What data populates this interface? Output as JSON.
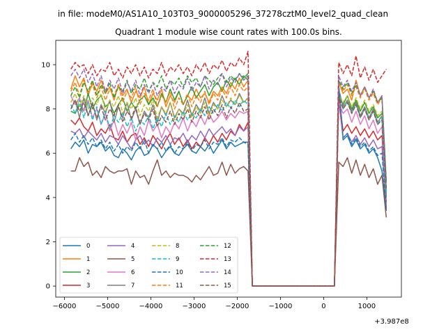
{
  "suptitle": "in file: modeM0/AS1A10_103T03_9000005296_37278cztM0_level2_quad_clean",
  "chart_data": {
    "type": "line",
    "title": "Quadrant 1 module wise count rates with 100.0s bins.",
    "xlabel": "",
    "ylabel": "",
    "x_offset_label": "+3.987e8",
    "xlim": [
      -6200,
      1800
    ],
    "ylim": [
      -0.5,
      11.1
    ],
    "grid": false,
    "legend_position": "lower-left",
    "legend_columns": 4,
    "xticks": [
      -6000,
      -5000,
      -4000,
      -3000,
      -2000,
      -1000,
      0,
      1000
    ],
    "xtick_labels": [
      "−6000",
      "−5000",
      "−4000",
      "−3000",
      "−2000",
      "−1000",
      "0",
      "1000"
    ],
    "yticks": [
      0,
      2,
      4,
      6,
      8,
      10
    ],
    "ytick_labels": [
      "0",
      "2",
      "4",
      "6",
      "8",
      "10"
    ],
    "segment1": {
      "x_start": -5850,
      "x_end": -1750,
      "step": 100
    },
    "gap": {
      "x_start": -1650,
      "x_end": 250,
      "value": 0
    },
    "segment2": {
      "x_start": 350,
      "x_end": 1450,
      "step": 100
    },
    "series": [
      {
        "name": "0",
        "color": "#1f77b4",
        "dash": "solid",
        "values": [
          6.2,
          6.5,
          6.3,
          6.6,
          6.0,
          6.4,
          6.3,
          6.5,
          6.1,
          6.3,
          5.9,
          5.8,
          6.2,
          6.0,
          5.7,
          6.1,
          6.3,
          5.9,
          6.0,
          6.4,
          6.2,
          5.8,
          6.1,
          6.3,
          6.0,
          5.9,
          6.2,
          6.4,
          6.1,
          6.0,
          6.3,
          6.1,
          6.4,
          6.0,
          6.3,
          6.6,
          6.2,
          6.5,
          6.3,
          6.4,
          6.5,
          6.5
        ],
        "tail": [
          9.0,
          6.6,
          6.8,
          6.3,
          6.6,
          6.2,
          6.4,
          6.0,
          6.2,
          5.8,
          5.2,
          3.4
        ]
      },
      {
        "name": "1",
        "color": "#ff7f0e",
        "dash": "solid",
        "values": [
          8.9,
          9.5,
          9.0,
          9.4,
          8.6,
          9.2,
          8.8,
          9.3,
          8.7,
          9.0,
          8.4,
          9.1,
          8.6,
          8.9,
          8.3,
          8.8,
          8.5,
          9.0,
          8.2,
          8.7,
          8.4,
          8.9,
          8.1,
          8.6,
          8.3,
          8.8,
          8.2,
          8.6,
          8.4,
          8.9,
          8.5,
          8.7,
          8.3,
          8.8,
          8.6,
          9.0,
          8.7,
          9.2,
          8.9,
          9.4,
          9.0,
          9.3
        ],
        "tail": [
          9.2,
          8.7,
          8.9,
          8.4,
          9.3,
          8.6,
          9.0,
          8.5,
          8.8,
          8.3,
          8.6,
          4.4
        ]
      },
      {
        "name": "2",
        "color": "#2ca02c",
        "dash": "solid",
        "values": [
          7.9,
          7.8,
          8.2,
          7.9,
          8.7,
          8.0,
          8.4,
          8.6,
          8.1,
          8.3,
          7.8,
          8.2,
          8.5,
          7.9,
          8.3,
          8.0,
          8.4,
          8.6,
          8.2,
          8.5,
          8.1,
          8.7,
          8.3,
          8.9,
          8.4,
          8.8,
          8.2,
          8.6,
          9.0,
          8.5,
          8.8,
          9.1,
          8.6,
          9.0,
          9.2,
          8.8,
          9.3,
          9.0,
          9.4,
          9.1,
          9.5,
          9.3
        ],
        "tail": [
          8.5,
          8.2,
          8.6,
          8.0,
          8.4,
          7.9,
          8.3,
          7.8,
          8.1,
          7.6,
          7.8,
          4.1
        ]
      },
      {
        "name": "3",
        "color": "#d62728",
        "dash": "solid",
        "values": [
          7.5,
          7.3,
          7.6,
          7.2,
          7.0,
          7.4,
          6.8,
          7.1,
          6.9,
          7.3,
          6.7,
          6.6,
          7.0,
          6.5,
          6.8,
          6.9,
          6.4,
          6.7,
          6.3,
          6.8,
          6.5,
          6.2,
          6.6,
          6.9,
          6.4,
          6.7,
          6.3,
          6.6,
          6.2,
          6.5,
          6.3,
          6.7,
          6.4,
          6.8,
          6.5,
          6.9,
          6.6,
          7.0,
          6.8,
          7.3,
          7.0,
          7.4
        ],
        "tail": [
          8.6,
          7.0,
          7.3,
          6.9,
          7.2,
          6.8,
          7.1,
          6.7,
          7.0,
          6.6,
          6.8,
          3.8
        ]
      },
      {
        "name": "4",
        "color": "#9467bd",
        "dash": "solid",
        "values": [
          7.0,
          6.9,
          7.1,
          6.7,
          7.0,
          6.8,
          6.6,
          6.9,
          6.5,
          6.8,
          6.7,
          6.4,
          6.8,
          6.5,
          6.2,
          6.6,
          6.8,
          6.4,
          6.6,
          6.3,
          6.7,
          6.5,
          6.8,
          6.4,
          6.7,
          6.6,
          6.9,
          6.5,
          6.8,
          6.6,
          7.0,
          6.7,
          7.1,
          6.8,
          7.0,
          7.2,
          6.9,
          7.1,
          6.8,
          7.2,
          7.0,
          7.2
        ],
        "tail": [
          8.4,
          6.7,
          6.9,
          6.5,
          6.8,
          6.4,
          6.7,
          6.3,
          6.6,
          6.2,
          6.3,
          3.6
        ]
      },
      {
        "name": "5",
        "color": "#8c564b",
        "dash": "solid",
        "values": [
          5.2,
          5.2,
          5.8,
          5.4,
          5.6,
          5.0,
          5.2,
          4.9,
          5.4,
          5.2,
          5.1,
          5.2,
          5.2,
          5.3,
          4.6,
          5.2,
          4.9,
          5.0,
          4.6,
          5.2,
          5.7,
          5.0,
          5.2,
          4.9,
          5.1,
          5.0,
          5.0,
          4.9,
          4.7,
          5.0,
          4.8,
          5.1,
          5.4,
          5.0,
          5.1,
          5.6,
          5.0,
          5.5,
          5.1,
          5.3,
          5.4,
          5.2
        ],
        "tail": [
          5.6,
          5.4,
          5.8,
          5.1,
          5.7,
          5.0,
          5.5,
          4.9,
          5.3,
          4.6,
          5.0,
          3.1
        ]
      },
      {
        "name": "6",
        "color": "#e377c2",
        "dash": "solid",
        "values": [
          8.6,
          8.2,
          8.5,
          7.9,
          8.4,
          7.6,
          8.0,
          7.3,
          7.8,
          7.0,
          7.5,
          6.8,
          7.3,
          6.9,
          7.4,
          6.6,
          7.2,
          6.8,
          7.5,
          7.0,
          7.3,
          6.7,
          7.2,
          6.9,
          7.4,
          7.1,
          7.6,
          7.0,
          7.5,
          7.2,
          7.7,
          7.3,
          7.8,
          7.4,
          7.6,
          7.9,
          7.5,
          7.8,
          7.6,
          7.9,
          7.8,
          7.9
        ],
        "tail": [
          8.3,
          7.8,
          8.0,
          7.4,
          7.9,
          7.3,
          7.7,
          7.1,
          7.5,
          6.9,
          7.2,
          3.9
        ]
      },
      {
        "name": "7",
        "color": "#7f7f7f",
        "dash": "solid",
        "values": [
          8.0,
          8.4,
          7.6,
          8.5,
          7.7,
          8.3,
          7.5,
          8.2,
          7.8,
          8.4,
          7.4,
          8.1,
          7.6,
          8.3,
          7.5,
          8.0,
          7.3,
          7.9,
          7.6,
          8.2,
          7.4,
          8.1,
          7.7,
          8.3,
          7.6,
          8.0,
          7.8,
          8.4,
          7.7,
          8.2,
          7.9,
          8.5,
          7.8,
          8.3,
          8.0,
          8.6,
          8.1,
          8.4,
          8.2,
          8.7,
          8.3,
          8.5
        ],
        "tail": [
          8.9,
          8.1,
          8.4,
          7.9,
          8.3,
          7.7,
          8.1,
          7.6,
          8.0,
          7.4,
          7.7,
          4.0
        ]
      },
      {
        "name": "8",
        "color": "#bcbd22",
        "dash": "dash",
        "values": [
          8.3,
          8.7,
          8.1,
          8.6,
          8.0,
          8.5,
          8.2,
          8.7,
          7.9,
          8.4,
          8.1,
          8.6,
          7.8,
          8.3,
          8.0,
          8.5,
          7.7,
          8.2,
          7.9,
          8.4,
          7.6,
          8.1,
          7.8,
          8.3,
          7.5,
          8.0,
          7.7,
          8.2,
          7.6,
          8.1,
          7.8,
          8.3,
          7.7,
          8.2,
          8.0,
          8.4,
          8.1,
          8.5,
          8.2,
          8.6,
          8.3,
          8.5
        ],
        "tail": [
          8.7,
          8.3,
          8.6,
          8.1,
          8.5,
          8.0,
          8.4,
          7.9,
          8.2,
          7.7,
          7.9,
          4.3
        ]
      },
      {
        "name": "9",
        "color": "#17becf",
        "dash": "dash",
        "values": [
          8.2,
          7.8,
          8.4,
          7.6,
          8.3,
          7.5,
          8.1,
          7.3,
          7.9,
          7.1,
          7.7,
          7.4,
          7.8,
          7.2,
          7.6,
          7.0,
          7.5,
          7.3,
          7.7,
          7.1,
          7.6,
          7.2,
          7.8,
          7.3,
          7.7,
          7.4,
          7.9,
          7.5,
          7.8,
          7.6,
          8.0,
          7.7,
          8.1,
          7.8,
          8.2,
          7.9,
          8.3,
          8.0,
          8.4,
          8.1,
          8.4,
          8.2
        ],
        "tail": [
          8.8,
          8.0,
          8.3,
          7.8,
          8.2,
          7.6,
          8.0,
          7.5,
          7.9,
          7.3,
          7.6,
          4.2
        ]
      },
      {
        "name": "10",
        "color": "#1f77b4",
        "dash": "dash",
        "values": [
          6.6,
          6.9,
          6.5,
          6.8,
          6.4,
          6.7,
          6.3,
          6.6,
          6.2,
          6.5,
          6.1,
          6.4,
          6.0,
          6.3,
          6.1,
          6.5,
          6.2,
          6.6,
          6.0,
          6.4,
          6.2,
          6.5,
          6.1,
          6.4,
          6.0,
          6.3,
          6.2,
          6.5,
          6.1,
          6.4,
          6.3,
          6.6,
          6.2,
          6.5,
          6.4,
          6.7,
          6.3,
          6.6,
          6.5,
          6.7,
          6.5,
          6.4
        ],
        "tail": [
          9.1,
          6.7,
          6.9,
          6.4,
          6.7,
          6.3,
          6.5,
          6.1,
          6.3,
          5.9,
          6.0,
          3.5
        ]
      },
      {
        "name": "11",
        "color": "#ff7f0e",
        "dash": "dash",
        "values": [
          8.8,
          9.2,
          8.6,
          9.3,
          8.7,
          9.1,
          8.5,
          9.0,
          8.4,
          8.9,
          8.6,
          9.1,
          8.3,
          8.8,
          8.5,
          9.0,
          8.2,
          8.7,
          8.4,
          8.9,
          8.1,
          8.6,
          8.3,
          8.8,
          8.0,
          8.5,
          8.2,
          8.7,
          8.1,
          8.6,
          8.3,
          8.8,
          8.2,
          8.7,
          8.4,
          8.9,
          8.5,
          9.0,
          8.6,
          9.1,
          8.8,
          9.0
        ],
        "tail": [
          9.3,
          8.8,
          9.1,
          8.6,
          9.0,
          8.5,
          8.9,
          8.4,
          8.7,
          8.2,
          8.5,
          4.6
        ]
      },
      {
        "name": "12",
        "color": "#2ca02c",
        "dash": "dash",
        "values": [
          8.6,
          9.0,
          8.5,
          9.2,
          8.8,
          9.3,
          8.6,
          9.1,
          8.7,
          9.2,
          8.5,
          9.0,
          8.8,
          9.3,
          8.7,
          9.1,
          8.9,
          9.4,
          8.8,
          9.2,
          9.0,
          9.5,
          8.9,
          9.3,
          9.1,
          9.4,
          9.0,
          9.5,
          9.2,
          9.4,
          9.0,
          9.5,
          9.3,
          9.1,
          9.4,
          9.6,
          9.2,
          9.5,
          9.3,
          9.6,
          9.4,
          9.6
        ],
        "tail": [
          9.3,
          8.9,
          9.2,
          8.7,
          9.1,
          8.6,
          9.0,
          8.5,
          8.8,
          8.3,
          8.5,
          4.8
        ]
      },
      {
        "name": "13",
        "color": "#d62728",
        "dash": "dash",
        "values": [
          9.8,
          10.1,
          9.9,
          10.0,
          9.6,
          10.0,
          9.5,
          9.8,
          9.7,
          10.1,
          9.5,
          9.8,
          9.4,
          9.9,
          9.6,
          10.0,
          9.5,
          9.9,
          9.4,
          9.8,
          9.6,
          10.1,
          9.5,
          9.9,
          9.7,
          10.0,
          9.6,
          9.9,
          9.5,
          10.0,
          9.7,
          10.1,
          9.6,
          10.0,
          9.8,
          10.2,
          9.7,
          10.1,
          9.9,
          10.3,
          10.0,
          10.6
        ],
        "tail": [
          10.1,
          9.6,
          10.0,
          9.5,
          10.4,
          9.4,
          9.9,
          9.3,
          9.8,
          9.2,
          9.5,
          9.8
        ]
      },
      {
        "name": "14",
        "color": "#9467bd",
        "dash": "dash",
        "values": [
          9.5,
          9.8,
          9.4,
          9.8,
          9.2,
          9.6,
          9.0,
          9.5,
          8.8,
          9.3,
          8.9,
          9.4,
          8.7,
          9.2,
          8.8,
          9.3,
          8.6,
          9.1,
          8.7,
          9.2,
          8.6,
          9.0,
          8.8,
          9.3,
          8.7,
          9.1,
          8.9,
          9.4,
          8.8,
          9.2,
          9.0,
          9.5,
          8.9,
          9.3,
          9.1,
          9.6,
          9.0,
          9.4,
          9.2,
          9.6,
          9.3,
          9.5
        ],
        "tail": [
          9.5,
          9.0,
          9.3,
          8.8,
          9.2,
          8.6,
          9.0,
          8.5,
          8.9,
          8.3,
          8.6,
          4.7
        ]
      },
      {
        "name": "15",
        "color": "#8c564b",
        "dash": "dash",
        "values": [
          8.0,
          8.4,
          7.9,
          8.3,
          7.7,
          8.2,
          7.6,
          8.1,
          7.5,
          8.0,
          7.7,
          8.2,
          7.4,
          7.9,
          7.6,
          8.1,
          7.3,
          7.8,
          7.5,
          8.0,
          7.2,
          7.7,
          7.4,
          7.9,
          7.3,
          7.8,
          7.5,
          8.0,
          7.4,
          7.9,
          7.6,
          8.1,
          7.5,
          8.0,
          7.7,
          8.2,
          7.6,
          8.1,
          7.8,
          8.3,
          7.9,
          8.0
        ],
        "tail": [
          8.6,
          8.0,
          8.3,
          7.8,
          8.2,
          7.6,
          8.0,
          7.5,
          7.9,
          7.3,
          7.5,
          4.4
        ]
      }
    ]
  }
}
